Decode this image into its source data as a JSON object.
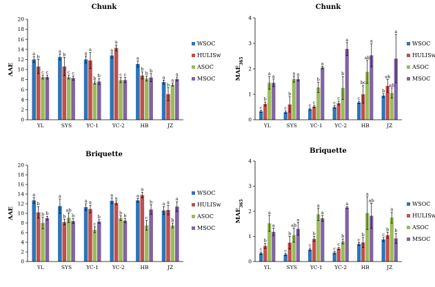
{
  "legend": [
    "WSOC",
    "HULISw",
    "ASOC",
    "MSOC"
  ],
  "colors": [
    "#2e75b6",
    "#c0504d",
    "#9bbb59",
    "#8064a2"
  ],
  "chart_data": [
    {
      "type": "bar",
      "title": "Chunk",
      "ylabel": "AAE",
      "categories": [
        "YL",
        "SYS",
        "YC-1",
        "YC-2",
        "HB",
        "JZ"
      ],
      "ylim": [
        0,
        20
      ],
      "yticks": [
        0,
        2,
        4,
        6,
        8,
        10,
        12,
        14,
        16,
        18,
        20
      ],
      "series": [
        {
          "name": "WSOC",
          "values": [
            12.0,
            12.5,
            12.0,
            12.8,
            11.1,
            7.5
          ],
          "errors": [
            0.6,
            0.6,
            0.7,
            0.5,
            0.6,
            0.4
          ],
          "labels": [
            "a",
            "a",
            "a",
            "a",
            "a",
            "a"
          ]
        },
        {
          "name": "HULISw",
          "values": [
            10.6,
            10.6,
            11.8,
            14.3,
            8.8,
            5.1
          ],
          "errors": [
            1.4,
            1.8,
            1.6,
            0.6,
            0.7,
            1.3
          ],
          "labels": [
            "b",
            "b",
            "a",
            "a",
            "b",
            "b"
          ]
        },
        {
          "name": "ASOC",
          "values": [
            8.5,
            8.5,
            7.4,
            7.9,
            8.2,
            7.0
          ],
          "errors": [
            0.4,
            0.4,
            0.3,
            0.5,
            0.5,
            0.3
          ],
          "labels": [
            "c",
            "c",
            "b",
            "c",
            "b",
            "a"
          ]
        },
        {
          "name": "MSOC",
          "values": [
            8.5,
            8.3,
            7.6,
            7.9,
            8.4,
            8.1
          ],
          "errors": [
            0.4,
            0.4,
            0.6,
            0.5,
            0.8,
            0.4
          ],
          "labels": [
            "c",
            "c",
            "b",
            "c",
            "b",
            "a"
          ]
        }
      ]
    },
    {
      "type": "bar",
      "title": "Chunk",
      "ylabel": "MAE",
      "ylabel_sub": "365",
      "categories": [
        "YL",
        "SYS",
        "YC-1",
        "YC-2",
        "HB",
        "JZ"
      ],
      "ylim": [
        0,
        4
      ],
      "yticks": [
        0,
        1,
        2,
        3,
        4
      ],
      "series": [
        {
          "name": "WSOC",
          "values": [
            0.33,
            0.3,
            0.42,
            0.5,
            0.68,
            0.95
          ],
          "errors": [
            0.04,
            0.05,
            0.04,
            0.05,
            0.05,
            0.08
          ],
          "labels": [
            "c",
            "c",
            "c",
            "c",
            "c",
            "b"
          ]
        },
        {
          "name": "HULISw",
          "values": [
            0.62,
            0.6,
            0.52,
            0.65,
            1.0,
            1.33
          ],
          "errors": [
            0.08,
            0.3,
            0.05,
            0.08,
            0.35,
            0.25
          ],
          "labels": [
            "b",
            "b",
            "c",
            "c",
            "bc",
            "ab"
          ]
        },
        {
          "name": "ASOC",
          "values": [
            1.45,
            1.6,
            1.27,
            1.25,
            1.88,
            1.05
          ],
          "errors": [
            0.25,
            0.12,
            0.2,
            0.45,
            0.45,
            0.2
          ],
          "labels": [
            "a",
            "a",
            "b",
            "b",
            "ab",
            "ab"
          ]
        },
        {
          "name": "MSOC",
          "values": [
            1.45,
            1.6,
            2.05,
            2.78,
            2.53,
            2.4
          ],
          "errors": [
            0.15,
            0.08,
            0.05,
            0.25,
            0.45,
            0.95
          ],
          "labels": [
            "a",
            "a",
            "a",
            "a",
            "a",
            "a"
          ]
        }
      ]
    },
    {
      "type": "bar",
      "title": "Briquette",
      "ylabel": "AAE",
      "categories": [
        "YL",
        "SYS",
        "YC-1",
        "YC-2",
        "HB",
        "JZ"
      ],
      "ylim": [
        0,
        20
      ],
      "yticks": [
        0,
        2,
        4,
        6,
        8,
        10,
        12,
        14,
        16,
        18,
        20
      ],
      "series": [
        {
          "name": "WSOC",
          "values": [
            12.7,
            11.5,
            11.3,
            12.6,
            12.7,
            10.6
          ],
          "errors": [
            0.6,
            1.5,
            0.7,
            0.6,
            0.4,
            0.8
          ],
          "labels": [
            "a",
            "a",
            "a",
            "a",
            "a",
            "a"
          ]
        },
        {
          "name": "HULISw",
          "values": [
            10.2,
            8.2,
            10.9,
            12.2,
            13.8,
            10.7
          ],
          "errors": [
            1.2,
            0.6,
            0.8,
            0.4,
            0.6,
            1.0
          ],
          "labels": [
            "b",
            "b",
            "a",
            "a",
            "a",
            "a"
          ]
        },
        {
          "name": "ASOC",
          "values": [
            8.0,
            9.1,
            6.6,
            9.0,
            7.5,
            7.5
          ],
          "errors": [
            1.2,
            1.0,
            0.6,
            0.5,
            1.0,
            0.5
          ],
          "labels": [
            "b",
            "ab",
            "c",
            "b",
            "c",
            "b"
          ]
        },
        {
          "name": "MSOC",
          "values": [
            9.0,
            8.4,
            8.3,
            8.5,
            10.8,
            11.4
          ],
          "errors": [
            0.4,
            0.5,
            0.4,
            0.4,
            1.0,
            1.0
          ],
          "labels": [
            "b",
            "b",
            "b",
            "b",
            "b",
            "a"
          ]
        }
      ]
    },
    {
      "type": "bar",
      "title": "Briquette",
      "ylabel": "MAE",
      "ylabel_sub": "365",
      "categories": [
        "YL",
        "SYS",
        "YC-1",
        "YC-2",
        "HB",
        "JZ"
      ],
      "ylim": [
        0,
        4
      ],
      "yticks": [
        0,
        1,
        2,
        3,
        4
      ],
      "series": [
        {
          "name": "WSOC",
          "values": [
            0.33,
            0.28,
            0.48,
            0.35,
            0.7,
            0.88
          ],
          "errors": [
            0.05,
            0.04,
            0.05,
            0.05,
            0.06,
            0.08
          ],
          "labels": [
            "c",
            "c",
            "c",
            "c",
            "c",
            "c"
          ]
        },
        {
          "name": "HULISw",
          "values": [
            0.62,
            0.75,
            0.9,
            0.52,
            0.76,
            1.05
          ],
          "errors": [
            0.1,
            0.25,
            0.1,
            0.05,
            0.2,
            0.12
          ],
          "labels": [
            "b",
            "b",
            "b",
            "c",
            "b",
            "b"
          ]
        },
        {
          "name": "ASOC",
          "values": [
            1.52,
            1.05,
            1.88,
            0.8,
            1.93,
            1.75
          ],
          "errors": [
            0.32,
            0.28,
            0.25,
            0.1,
            0.65,
            0.22
          ],
          "labels": [
            "a",
            "ab",
            "a",
            "b",
            "a",
            "a"
          ]
        },
        {
          "name": "MSOC",
          "values": [
            1.18,
            1.3,
            1.72,
            2.15,
            1.82,
            0.92
          ],
          "errors": [
            0.15,
            0.25,
            0.12,
            0.04,
            0.5,
            0.2
          ],
          "labels": [
            "a",
            "a",
            "a",
            "a",
            "ab",
            "b"
          ]
        }
      ]
    }
  ]
}
